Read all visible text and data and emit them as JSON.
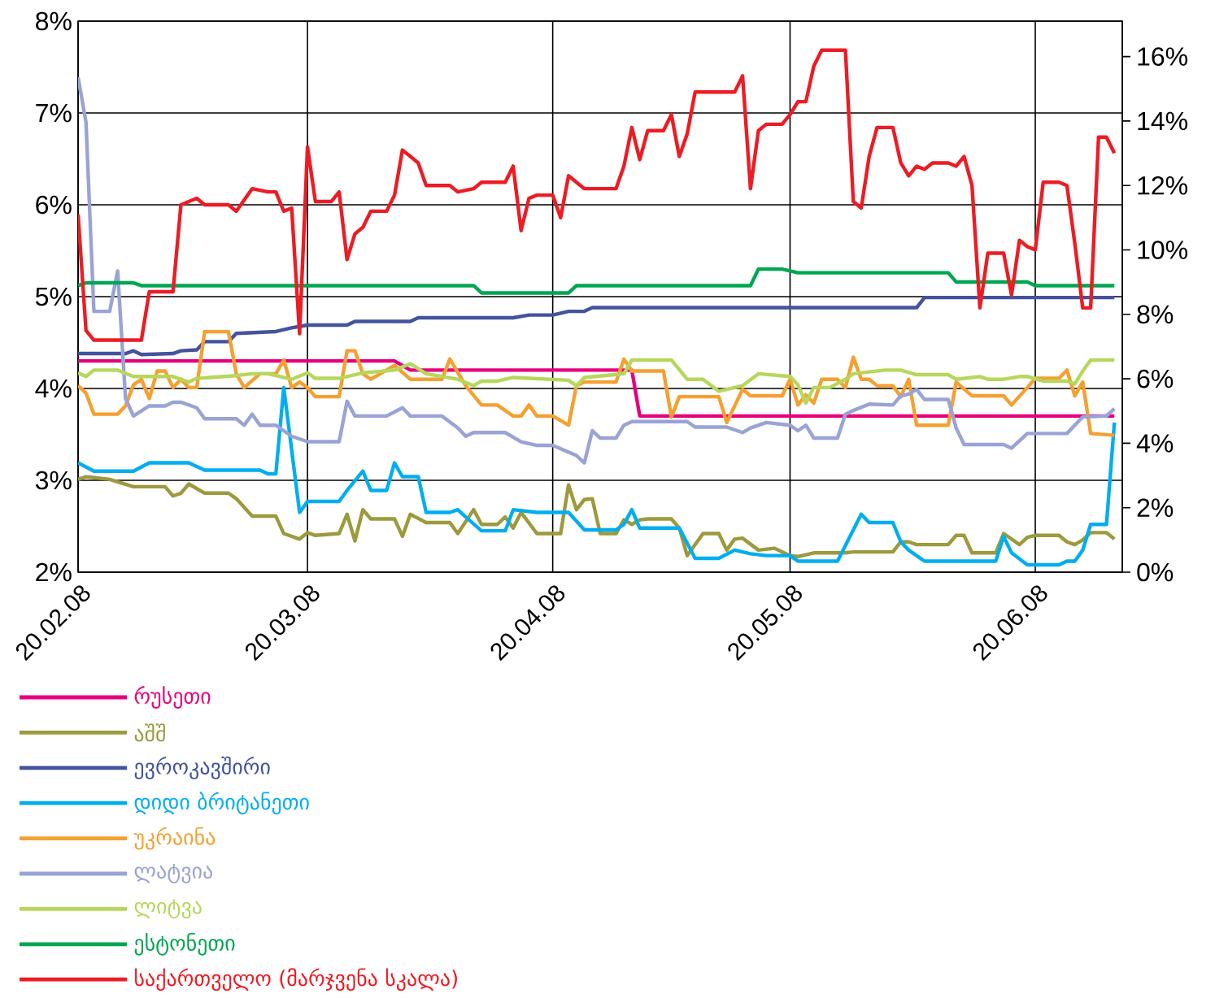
{
  "chart_data": {
    "type": "line",
    "xlim": [
      "2008-02-20",
      "2008-07-01"
    ],
    "xticks": [
      {
        "value": "2008-02-20",
        "label": "20.02.08"
      },
      {
        "value": "2008-03-20",
        "label": "20.03.08"
      },
      {
        "value": "2008-04-20",
        "label": "20.04.08"
      },
      {
        "value": "2008-05-20",
        "label": "20.05.08"
      },
      {
        "value": "2008-06-20",
        "label": "20.06.08"
      }
    ],
    "ylim": [
      2,
      8
    ],
    "yticks": [
      {
        "value": 2,
        "label": "2%"
      },
      {
        "value": 3,
        "label": "3%"
      },
      {
        "value": 4,
        "label": "4%"
      },
      {
        "value": 5,
        "label": "5%"
      },
      {
        "value": 6,
        "label": "6%"
      },
      {
        "value": 7,
        "label": "7%"
      },
      {
        "value": 8,
        "label": "8%"
      }
    ],
    "y2lim": [
      0,
      17.1
    ],
    "y2ticks": [
      {
        "value": 0,
        "label": "0%"
      },
      {
        "value": 2,
        "label": "2%"
      },
      {
        "value": 4,
        "label": "4%"
      },
      {
        "value": 6,
        "label": "6%"
      },
      {
        "value": 8,
        "label": "8%"
      },
      {
        "value": 10,
        "label": "10%"
      },
      {
        "value": 12,
        "label": "12%"
      },
      {
        "value": 14,
        "label": "14%"
      },
      {
        "value": 16,
        "label": "16%"
      }
    ],
    "grid": true,
    "legend": "bottom",
    "line_style": "solid",
    "series": [
      {
        "name": "რუსეთი",
        "color": "#e6007e",
        "x": [
          "2008-02-20",
          "2008-03-31",
          "2008-04-02",
          "2008-04-30",
          "2008-05-01",
          "2008-06-30"
        ],
        "values": [
          4.3,
          4.3,
          4.2,
          4.2,
          3.7,
          3.7
        ]
      },
      {
        "name": "აშშ",
        "color": "#9c9a3c",
        "x": [
          "2008-02-20",
          "2008-02-21",
          "2008-02-24",
          "2008-02-27",
          "2008-03-02",
          "2008-03-03",
          "2008-03-04",
          "2008-03-05",
          "2008-03-07",
          "2008-03-10",
          "2008-03-11",
          "2008-03-13",
          "2008-03-16",
          "2008-03-17",
          "2008-03-19",
          "2008-03-20",
          "2008-03-21",
          "2008-03-24",
          "2008-03-25",
          "2008-03-26",
          "2008-03-27",
          "2008-03-28",
          "2008-03-31",
          "2008-04-01",
          "2008-04-02",
          "2008-04-04",
          "2008-04-07",
          "2008-04-08",
          "2008-04-10",
          "2008-04-11",
          "2008-04-13",
          "2008-04-14",
          "2008-04-15",
          "2008-04-16",
          "2008-04-18",
          "2008-04-21",
          "2008-04-22",
          "2008-04-23",
          "2008-04-24",
          "2008-04-25",
          "2008-04-26",
          "2008-04-28",
          "2008-04-29",
          "2008-04-30",
          "2008-05-01",
          "2008-05-02",
          "2008-05-05",
          "2008-05-06",
          "2008-05-07",
          "2008-05-09",
          "2008-05-11",
          "2008-05-12",
          "2008-05-13",
          "2008-05-14",
          "2008-05-16",
          "2008-05-18",
          "2008-05-20",
          "2008-05-21",
          "2008-05-23",
          "2008-05-27",
          "2008-05-28",
          "2008-06-02",
          "2008-06-03",
          "2008-06-04",
          "2008-06-05",
          "2008-06-09",
          "2008-06-10",
          "2008-06-11",
          "2008-06-12",
          "2008-06-15",
          "2008-06-16",
          "2008-06-17",
          "2008-06-18",
          "2008-06-19",
          "2008-06-20",
          "2008-06-23",
          "2008-06-24",
          "2008-06-25",
          "2008-06-26",
          "2008-06-27",
          "2008-06-29",
          "2008-06-30"
        ],
        "values": [
          3.01,
          3.04,
          3.01,
          2.93,
          2.93,
          2.83,
          2.86,
          2.96,
          2.86,
          2.86,
          2.8,
          2.61,
          2.61,
          2.42,
          2.36,
          2.43,
          2.4,
          2.42,
          2.63,
          2.34,
          2.68,
          2.58,
          2.58,
          2.39,
          2.63,
          2.54,
          2.54,
          2.42,
          2.68,
          2.52,
          2.52,
          2.6,
          2.48,
          2.65,
          2.42,
          2.42,
          2.95,
          2.68,
          2.79,
          2.8,
          2.42,
          2.42,
          2.57,
          2.52,
          2.57,
          2.58,
          2.58,
          2.48,
          2.18,
          2.42,
          2.42,
          2.24,
          2.36,
          2.37,
          2.24,
          2.26,
          2.18,
          2.17,
          2.21,
          2.21,
          2.22,
          2.22,
          2.33,
          2.33,
          2.3,
          2.3,
          2.4,
          2.4,
          2.21,
          2.21,
          2.42,
          2.36,
          2.3,
          2.38,
          2.4,
          2.4,
          2.33,
          2.3,
          2.35,
          2.43,
          2.43,
          2.36
        ]
      },
      {
        "name": "ევროკავშირი",
        "color": "#44539e",
        "x": [
          "2008-02-20",
          "2008-02-26",
          "2008-02-27",
          "2008-02-28",
          "2008-03-03",
          "2008-03-04",
          "2008-03-06",
          "2008-03-07",
          "2008-03-10",
          "2008-03-11",
          "2008-03-16",
          "2008-03-18",
          "2008-03-20",
          "2008-03-25",
          "2008-03-26",
          "2008-04-02",
          "2008-04-03",
          "2008-04-15",
          "2008-04-17",
          "2008-04-20",
          "2008-04-22",
          "2008-04-24",
          "2008-04-25",
          "2008-06-05",
          "2008-06-06",
          "2008-06-30"
        ],
        "values": [
          4.38,
          4.38,
          4.41,
          4.37,
          4.38,
          4.41,
          4.42,
          4.51,
          4.51,
          4.6,
          4.62,
          4.66,
          4.69,
          4.69,
          4.73,
          4.73,
          4.77,
          4.77,
          4.8,
          4.8,
          4.84,
          4.84,
          4.88,
          4.88,
          4.99,
          4.99
        ]
      },
      {
        "name": "დიდი ბრიტანეთი",
        "color": "#00aeef",
        "x": [
          "2008-02-20",
          "2008-02-22",
          "2008-02-27",
          "2008-02-29",
          "2008-03-05",
          "2008-03-07",
          "2008-03-14",
          "2008-03-15",
          "2008-03-16",
          "2008-03-17",
          "2008-03-19",
          "2008-03-20",
          "2008-03-24",
          "2008-03-25",
          "2008-03-27",
          "2008-03-28",
          "2008-03-30",
          "2008-03-31",
          "2008-04-01",
          "2008-04-03",
          "2008-04-04",
          "2008-04-07",
          "2008-04-08",
          "2008-04-09",
          "2008-04-11",
          "2008-04-14",
          "2008-04-15",
          "2008-04-18",
          "2008-04-22",
          "2008-04-24",
          "2008-04-28",
          "2008-04-29",
          "2008-04-30",
          "2008-05-01",
          "2008-05-06",
          "2008-05-08",
          "2008-05-11",
          "2008-05-13",
          "2008-05-15",
          "2008-05-17",
          "2008-05-20",
          "2008-05-21",
          "2008-05-26",
          "2008-05-29",
          "2008-05-30",
          "2008-06-02",
          "2008-06-03",
          "2008-06-04",
          "2008-06-06",
          "2008-06-15",
          "2008-06-16",
          "2008-06-17",
          "2008-06-19",
          "2008-06-23",
          "2008-06-24",
          "2008-06-25",
          "2008-06-26",
          "2008-06-27",
          "2008-06-29",
          "2008-06-30"
        ],
        "values": [
          3.19,
          3.1,
          3.1,
          3.19,
          3.19,
          3.11,
          3.11,
          3.07,
          3.07,
          4.01,
          2.65,
          2.77,
          2.77,
          2.89,
          3.1,
          2.89,
          2.89,
          3.19,
          3.04,
          3.04,
          2.65,
          2.65,
          2.68,
          2.6,
          2.45,
          2.45,
          2.68,
          2.65,
          2.65,
          2.46,
          2.46,
          2.52,
          2.68,
          2.48,
          2.48,
          2.15,
          2.15,
          2.24,
          2.2,
          2.18,
          2.18,
          2.12,
          2.12,
          2.63,
          2.54,
          2.54,
          2.33,
          2.24,
          2.12,
          2.12,
          2.39,
          2.21,
          2.08,
          2.08,
          2.12,
          2.12,
          2.24,
          2.52,
          2.52,
          3.63
        ]
      },
      {
        "name": "უკრაინა",
        "color": "#f5a031",
        "x": [
          "2008-02-20",
          "2008-02-21",
          "2008-02-22",
          "2008-02-25",
          "2008-02-26",
          "2008-02-27",
          "2008-02-28",
          "2008-02-29",
          "2008-03-01",
          "2008-03-02",
          "2008-03-03",
          "2008-03-04",
          "2008-03-05",
          "2008-03-06",
          "2008-03-07",
          "2008-03-10",
          "2008-03-11",
          "2008-03-12",
          "2008-03-14",
          "2008-03-16",
          "2008-03-17",
          "2008-03-18",
          "2008-03-19",
          "2008-03-20",
          "2008-03-21",
          "2008-03-24",
          "2008-03-25",
          "2008-03-26",
          "2008-03-27",
          "2008-03-28",
          "2008-03-31",
          "2008-04-02",
          "2008-04-06",
          "2008-04-07",
          "2008-04-09",
          "2008-04-11",
          "2008-04-13",
          "2008-04-15",
          "2008-04-16",
          "2008-04-17",
          "2008-04-18",
          "2008-04-20",
          "2008-04-22",
          "2008-04-23",
          "2008-04-24",
          "2008-04-28",
          "2008-04-29",
          "2008-04-30",
          "2008-05-04",
          "2008-05-05",
          "2008-05-06",
          "2008-05-11",
          "2008-05-12",
          "2008-05-14",
          "2008-05-15",
          "2008-05-19",
          "2008-05-20",
          "2008-05-21",
          "2008-05-22",
          "2008-05-23",
          "2008-05-24",
          "2008-05-26",
          "2008-05-27",
          "2008-05-28",
          "2008-05-29",
          "2008-05-30",
          "2008-05-31",
          "2008-06-02",
          "2008-06-03",
          "2008-06-04",
          "2008-06-05",
          "2008-06-09",
          "2008-06-10",
          "2008-06-12",
          "2008-06-16",
          "2008-06-17",
          "2008-06-19",
          "2008-06-20",
          "2008-06-23",
          "2008-06-24",
          "2008-06-25",
          "2008-06-26",
          "2008-06-27",
          "2008-06-30"
        ],
        "values": [
          4.03,
          3.95,
          3.72,
          3.72,
          3.81,
          4.04,
          4.1,
          3.89,
          4.19,
          4.19,
          4.01,
          4.1,
          4.01,
          4.01,
          4.62,
          4.62,
          4.16,
          4.01,
          4.16,
          4.16,
          4.31,
          4.01,
          4.07,
          4.01,
          3.91,
          3.91,
          4.41,
          4.41,
          4.16,
          4.1,
          4.25,
          4.1,
          4.1,
          4.32,
          4.03,
          3.82,
          3.82,
          3.7,
          3.7,
          3.82,
          3.7,
          3.7,
          3.6,
          4.03,
          4.07,
          4.07,
          4.32,
          4.19,
          4.19,
          3.69,
          3.91,
          3.91,
          3.63,
          3.99,
          3.92,
          3.92,
          4.1,
          3.82,
          3.93,
          3.84,
          4.1,
          4.1,
          4.01,
          4.34,
          4.1,
          4.1,
          4.03,
          4.03,
          3.91,
          4.1,
          3.6,
          3.6,
          4.07,
          3.92,
          3.92,
          3.82,
          4.01,
          4.11,
          4.11,
          4.2,
          3.92,
          4.07,
          3.51,
          3.49
        ]
      },
      {
        "name": "ლატვია",
        "color": "#99a3d6",
        "x": [
          "2008-02-20",
          "2008-02-21",
          "2008-02-22",
          "2008-02-24",
          "2008-02-25",
          "2008-02-26",
          "2008-02-27",
          "2008-02-29",
          "2008-03-02",
          "2008-03-03",
          "2008-03-04",
          "2008-03-06",
          "2008-03-07",
          "2008-03-11",
          "2008-03-12",
          "2008-03-13",
          "2008-03-14",
          "2008-03-16",
          "2008-03-18",
          "2008-03-20",
          "2008-03-24",
          "2008-03-25",
          "2008-03-26",
          "2008-03-30",
          "2008-04-01",
          "2008-04-02",
          "2008-04-06",
          "2008-04-08",
          "2008-04-09",
          "2008-04-10",
          "2008-04-14",
          "2008-04-16",
          "2008-04-18",
          "2008-04-20",
          "2008-04-23",
          "2008-04-24",
          "2008-04-25",
          "2008-04-26",
          "2008-04-28",
          "2008-04-29",
          "2008-04-30",
          "2008-05-07",
          "2008-05-08",
          "2008-05-12",
          "2008-05-14",
          "2008-05-15",
          "2008-05-17",
          "2008-05-20",
          "2008-05-21",
          "2008-05-22",
          "2008-05-23",
          "2008-05-26",
          "2008-05-27",
          "2008-05-28",
          "2008-05-30",
          "2008-06-02",
          "2008-06-03",
          "2008-06-04",
          "2008-06-05",
          "2008-06-06",
          "2008-06-09",
          "2008-06-10",
          "2008-06-11",
          "2008-06-16",
          "2008-06-17",
          "2008-06-19",
          "2008-06-24",
          "2008-06-26",
          "2008-06-29",
          "2008-06-30"
        ],
        "values": [
          7.39,
          6.9,
          4.84,
          4.84,
          5.28,
          3.89,
          3.7,
          3.81,
          3.81,
          3.85,
          3.85,
          3.79,
          3.67,
          3.67,
          3.6,
          3.72,
          3.6,
          3.6,
          3.48,
          3.42,
          3.42,
          3.86,
          3.7,
          3.7,
          3.79,
          3.7,
          3.7,
          3.57,
          3.48,
          3.52,
          3.52,
          3.42,
          3.38,
          3.38,
          3.27,
          3.19,
          3.54,
          3.46,
          3.46,
          3.6,
          3.64,
          3.64,
          3.58,
          3.58,
          3.52,
          3.57,
          3.63,
          3.6,
          3.54,
          3.6,
          3.46,
          3.46,
          3.72,
          3.76,
          3.83,
          3.82,
          3.92,
          3.94,
          3.99,
          3.88,
          3.88,
          3.57,
          3.39,
          3.39,
          3.35,
          3.51,
          3.51,
          3.69,
          3.7,
          3.78
        ]
      },
      {
        "name": "ლიტვა",
        "color": "#b6d75b",
        "x": [
          "2008-02-20",
          "2008-02-21",
          "2008-02-22",
          "2008-02-25",
          "2008-02-27",
          "2008-03-03",
          "2008-03-05",
          "2008-03-06",
          "2008-03-11",
          "2008-03-13",
          "2008-03-15",
          "2008-03-18",
          "2008-03-20",
          "2008-03-21",
          "2008-03-24",
          "2008-03-27",
          "2008-03-31",
          "2008-04-02",
          "2008-04-04",
          "2008-04-08",
          "2008-04-10",
          "2008-04-11",
          "2008-04-13",
          "2008-04-15",
          "2008-04-22",
          "2008-04-23",
          "2008-04-24",
          "2008-04-29",
          "2008-04-30",
          "2008-05-05",
          "2008-05-07",
          "2008-05-09",
          "2008-05-11",
          "2008-05-14",
          "2008-05-16",
          "2008-05-20",
          "2008-05-21",
          "2008-05-22",
          "2008-05-23",
          "2008-05-25",
          "2008-05-27",
          "2008-05-28",
          "2008-06-01",
          "2008-06-03",
          "2008-06-05",
          "2008-06-09",
          "2008-06-10",
          "2008-06-13",
          "2008-06-14",
          "2008-06-16",
          "2008-06-18",
          "2008-06-19",
          "2008-06-21",
          "2008-06-24",
          "2008-06-25",
          "2008-06-26",
          "2008-06-27",
          "2008-06-30"
        ],
        "values": [
          4.17,
          4.13,
          4.2,
          4.2,
          4.13,
          4.13,
          4.07,
          4.11,
          4.14,
          4.16,
          4.16,
          4.1,
          4.17,
          4.11,
          4.11,
          4.17,
          4.2,
          4.27,
          4.16,
          4.1,
          4.03,
          4.08,
          4.08,
          4.12,
          4.09,
          4.03,
          4.12,
          4.16,
          4.31,
          4.31,
          4.1,
          4.1,
          3.97,
          4.03,
          4.16,
          4.13,
          4.04,
          3.84,
          4.01,
          4.01,
          4.1,
          4.16,
          4.2,
          4.2,
          4.15,
          4.15,
          4.1,
          4.13,
          4.1,
          4.1,
          4.13,
          4.13,
          4.08,
          4.08,
          4.05,
          4.19,
          4.31,
          4.31
        ]
      },
      {
        "name": "ესტონეთი",
        "color": "#00a651",
        "x": [
          "2008-02-20",
          "2008-02-21",
          "2008-02-27",
          "2008-02-28",
          "2008-04-10",
          "2008-04-11",
          "2008-04-22",
          "2008-04-23",
          "2008-05-15",
          "2008-05-16",
          "2008-05-19",
          "2008-05-21",
          "2008-06-09",
          "2008-06-10",
          "2008-06-19",
          "2008-06-20",
          "2008-06-30"
        ],
        "values": [
          5.12,
          5.15,
          5.15,
          5.12,
          5.12,
          5.04,
          5.04,
          5.12,
          5.12,
          5.3,
          5.3,
          5.26,
          5.26,
          5.16,
          5.16,
          5.12,
          5.12
        ]
      },
      {
        "name": "საქართველო (მარჯვენა სკალა)",
        "color": "#ed1c24",
        "axis": "y2",
        "x": [
          "2008-02-20",
          "2008-02-21",
          "2008-02-22",
          "2008-02-28",
          "2008-02-29",
          "2008-03-03",
          "2008-03-04",
          "2008-03-06",
          "2008-03-07",
          "2008-03-10",
          "2008-03-11",
          "2008-03-13",
          "2008-03-15",
          "2008-03-16",
          "2008-03-17",
          "2008-03-18",
          "2008-03-19",
          "2008-03-20",
          "2008-03-21",
          "2008-03-23",
          "2008-03-24",
          "2008-03-25",
          "2008-03-26",
          "2008-03-27",
          "2008-03-28",
          "2008-03-30",
          "2008-03-31",
          "2008-04-01",
          "2008-04-03",
          "2008-04-04",
          "2008-04-07",
          "2008-04-08",
          "2008-04-10",
          "2008-04-11",
          "2008-04-14",
          "2008-04-15",
          "2008-04-16",
          "2008-04-17",
          "2008-04-18",
          "2008-04-20",
          "2008-04-21",
          "2008-04-22",
          "2008-04-24",
          "2008-04-28",
          "2008-04-29",
          "2008-04-30",
          "2008-05-01",
          "2008-05-02",
          "2008-05-04",
          "2008-05-05",
          "2008-05-06",
          "2008-05-07",
          "2008-05-08",
          "2008-05-13",
          "2008-05-14",
          "2008-05-15",
          "2008-05-16",
          "2008-05-17",
          "2008-05-19",
          "2008-05-20",
          "2008-05-21",
          "2008-05-22",
          "2008-05-23",
          "2008-05-24",
          "2008-05-27",
          "2008-05-28",
          "2008-05-29",
          "2008-05-30",
          "2008-05-31",
          "2008-06-02",
          "2008-06-03",
          "2008-06-04",
          "2008-06-05",
          "2008-06-06",
          "2008-06-07",
          "2008-06-09",
          "2008-06-10",
          "2008-06-11",
          "2008-06-12",
          "2008-06-13",
          "2008-06-14",
          "2008-06-16",
          "2008-06-17",
          "2008-06-18",
          "2008-06-19",
          "2008-06-20",
          "2008-06-21",
          "2008-06-23",
          "2008-06-24",
          "2008-06-25",
          "2008-06-26",
          "2008-06-27",
          "2008-06-28",
          "2008-06-29",
          "2008-06-30"
        ],
        "values": [
          11.1,
          7.5,
          7.2,
          7.2,
          8.7,
          8.7,
          11.4,
          11.6,
          11.4,
          11.4,
          11.2,
          11.9,
          11.8,
          11.8,
          11.2,
          11.3,
          7.4,
          13.2,
          11.5,
          11.5,
          11.8,
          9.7,
          10.5,
          10.7,
          11.2,
          11.2,
          11.7,
          13.1,
          12.7,
          12.0,
          12.0,
          11.8,
          11.9,
          12.1,
          12.1,
          12.6,
          10.6,
          11.6,
          11.7,
          11.7,
          11.0,
          12.3,
          11.9,
          11.9,
          12.6,
          13.8,
          12.8,
          13.7,
          13.7,
          14.2,
          12.9,
          13.6,
          14.9,
          14.9,
          15.4,
          11.9,
          13.7,
          13.9,
          13.9,
          14.2,
          14.6,
          14.6,
          15.7,
          16.2,
          16.2,
          11.5,
          11.3,
          12.9,
          13.8,
          13.8,
          12.7,
          12.3,
          12.6,
          12.5,
          12.7,
          12.7,
          12.6,
          12.9,
          12.0,
          8.2,
          9.9,
          9.9,
          8.6,
          10.3,
          10.1,
          10.0,
          12.1,
          12.1,
          12.0,
          10.2,
          8.2,
          8.2,
          13.5,
          13.5,
          13.0
        ]
      }
    ]
  }
}
